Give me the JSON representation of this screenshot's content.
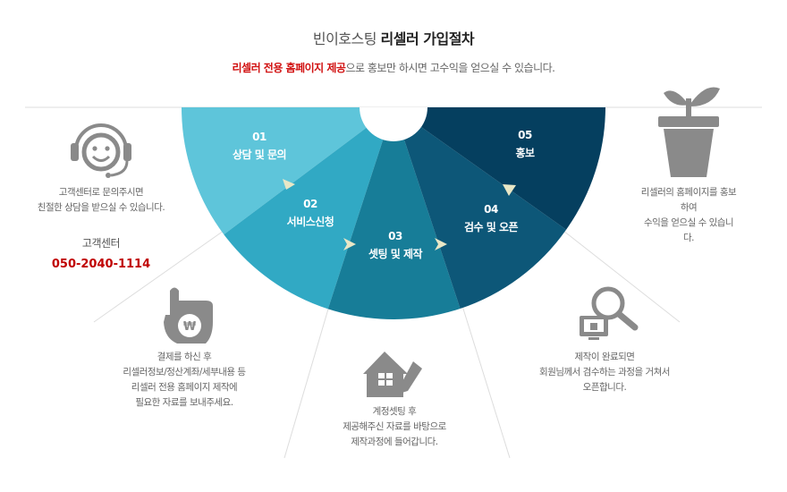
{
  "header": {
    "title_prefix": "빈이호스팅 ",
    "title_strong": "리셀러 가입절차",
    "subtitle_highlight": "리셀러 전용 홈페이지 제공",
    "subtitle_rest": "으로 홍보만 하시면 고수익을 얻으실 수 있습니다."
  },
  "steps": [
    {
      "num": "01",
      "label": "상담 및 문의",
      "color": "#5ec5da"
    },
    {
      "num": "02",
      "label": "서비스신청",
      "color": "#31a9c4"
    },
    {
      "num": "03",
      "label": "셋팅 및 제작",
      "color": "#177d98"
    },
    {
      "num": "04",
      "label": "검수 및 오픈",
      "color": "#0d5778"
    },
    {
      "num": "05",
      "label": "홍보",
      "color": "#053f5f"
    }
  ],
  "descriptions": {
    "contact": "고객센터로 문의주시면\n친절한 상담을 받으실 수 있습니다.",
    "apply": "결제를 하신 후\n리셀러정보/정산계좌/세부내용 등\n리셀러 전용 홈페이지 제작에\n필요한 자료를 보내주세요.",
    "setup": "계정셋팅 후\n제공해주신 자료를 바탕으로\n제작과정에 들어갑니다.",
    "review": "제작이 완료되면\n회원님께서 검수하는 과정을 거쳐서\n오픈합니다.",
    "promote": "리셀러의 홈페이지를 홍보하여\n수익을 얻으실 수 있습니다."
  },
  "contact_center": {
    "label": "고객센터",
    "phone": "050-2040-1114"
  },
  "icons": {
    "contact": "headset-smiley-icon",
    "apply": "hand-won-icon",
    "setup": "house-pencil-icon",
    "review": "monitor-magnifier-icon",
    "promote": "plant-pot-icon"
  },
  "colors": {
    "icon_gray": "#8a8a8a",
    "arrow": "#e9e7c6",
    "highlight_red": "#d11010"
  }
}
